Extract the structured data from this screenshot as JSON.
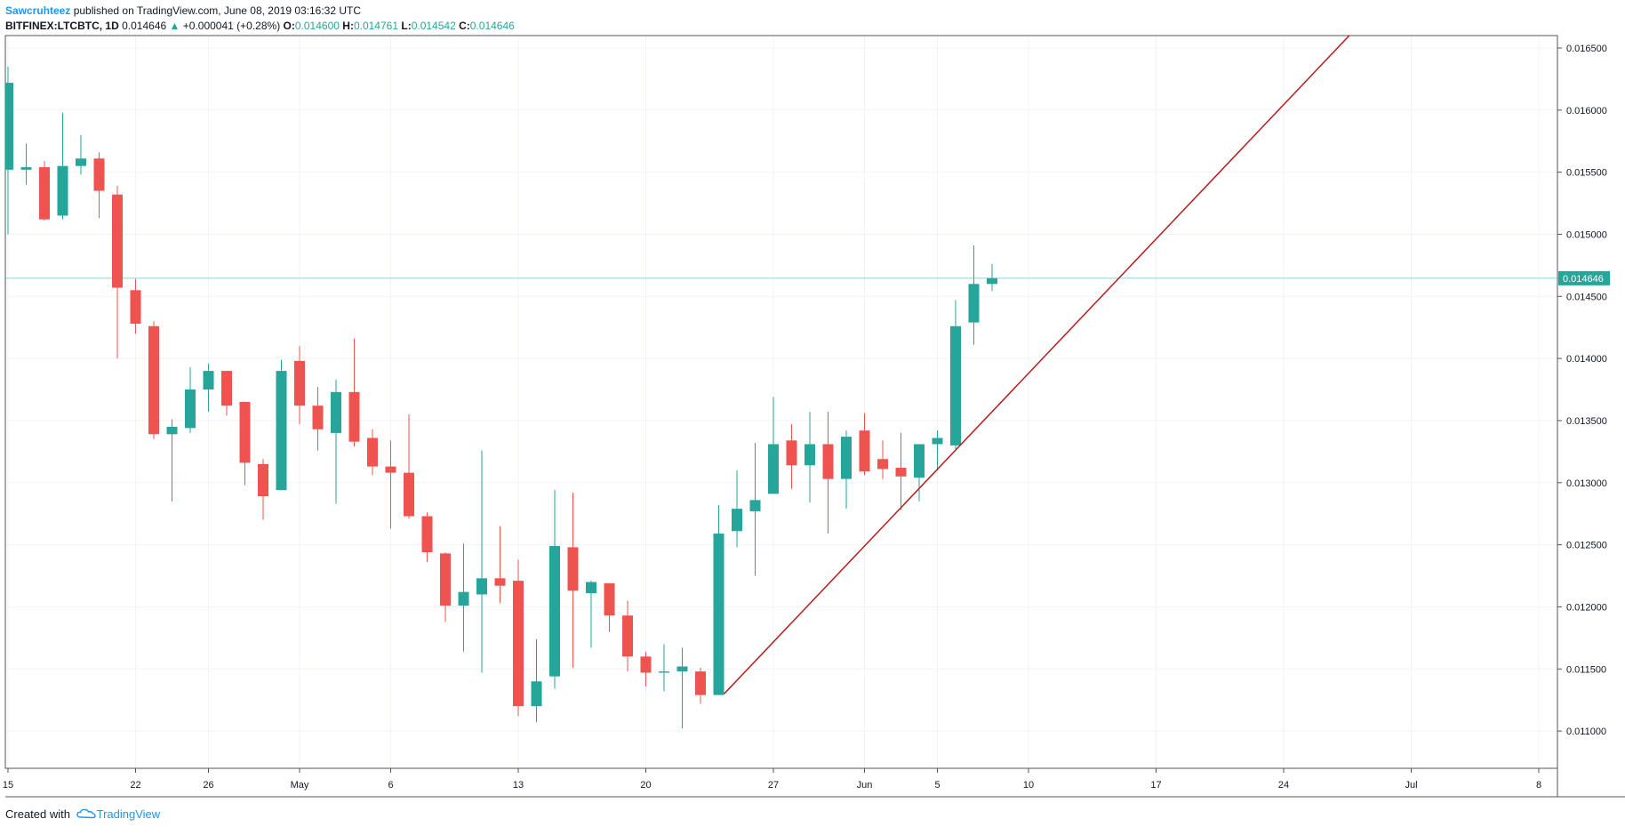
{
  "header": {
    "author": "Sawcruhteez",
    "published": "published on TradingView.com, June 08, 2019 03:16:32 UTC",
    "symbol": "BITFINEX:LTCBTC, 1D",
    "last": "0.014646",
    "change_arrow": "▲",
    "change": "+0.000041 (+0.28%)",
    "o_label": "O:",
    "o": "0.014600",
    "h_label": "H:",
    "h": "0.014761",
    "l_label": "L:",
    "l": "0.014542",
    "c_label": "C:",
    "c": "0.014646"
  },
  "footer": {
    "created_with": "Created with",
    "brand": "TradingView",
    "logo_icon": "tradingview-cloud-icon"
  },
  "colors": {
    "up": "#26a69a",
    "down": "#ef5350",
    "trendline": "#b71c1c",
    "grid": "#f0f3fa",
    "axis": "#555555",
    "price_line": "#26a69a"
  },
  "chart_data": {
    "type": "candlestick",
    "title": "BITFINEX:LTCBTC, 1D",
    "xlabel": "",
    "ylabel": "",
    "ylim": [
      0.0107,
      0.0166
    ],
    "y_ticks": [
      0.011,
      0.0115,
      0.012,
      0.0125,
      0.013,
      0.0135,
      0.014,
      0.0145,
      0.015,
      0.0155,
      0.016,
      0.0165
    ],
    "y_tick_labels": [
      "0.011000",
      "0.011500",
      "0.012000",
      "0.012500",
      "0.013000",
      "0.013500",
      "0.014000",
      "0.014500",
      "0.015000",
      "0.015500",
      "0.016000",
      "0.016500"
    ],
    "x_range_days": [
      0,
      84.5
    ],
    "x_ticks": [
      {
        "day": 0,
        "label": "15"
      },
      {
        "day": 7,
        "label": "22"
      },
      {
        "day": 11,
        "label": "26"
      },
      {
        "day": 16,
        "label": "May"
      },
      {
        "day": 21,
        "label": "6"
      },
      {
        "day": 28,
        "label": "13"
      },
      {
        "day": 35,
        "label": "20"
      },
      {
        "day": 42,
        "label": "27"
      },
      {
        "day": 47,
        "label": "Jun"
      },
      {
        "day": 51,
        "label": "5"
      },
      {
        "day": 56,
        "label": "10"
      },
      {
        "day": 63,
        "label": "17"
      },
      {
        "day": 70,
        "label": "24"
      },
      {
        "day": 77,
        "label": "Jul"
      },
      {
        "day": 84,
        "label": "8"
      }
    ],
    "first_day": "Apr 15, 2019",
    "current_price": 0.014646,
    "current_price_label": "0.014646",
    "candles": [
      {
        "d": 0,
        "o": 0.01552,
        "h": 0.01635,
        "l": 0.015,
        "c": 0.01622
      },
      {
        "d": 1,
        "o": 0.01552,
        "h": 0.01573,
        "l": 0.0154,
        "c": 0.01554
      },
      {
        "d": 2,
        "o": 0.01554,
        "h": 0.01559,
        "l": 0.01511,
        "c": 0.01512
      },
      {
        "d": 3,
        "o": 0.01515,
        "h": 0.01598,
        "l": 0.01512,
        "c": 0.01555
      },
      {
        "d": 4,
        "o": 0.01555,
        "h": 0.0158,
        "l": 0.01548,
        "c": 0.01561
      },
      {
        "d": 5,
        "o": 0.01561,
        "h": 0.01566,
        "l": 0.01513,
        "c": 0.01535
      },
      {
        "d": 6,
        "o": 0.01532,
        "h": 0.01539,
        "l": 0.014,
        "c": 0.01457
      },
      {
        "d": 7,
        "o": 0.01455,
        "h": 0.01464,
        "l": 0.0142,
        "c": 0.01428
      },
      {
        "d": 8,
        "o": 0.01426,
        "h": 0.0143,
        "l": 0.01335,
        "c": 0.01339
      },
      {
        "d": 9,
        "o": 0.01339,
        "h": 0.01351,
        "l": 0.01285,
        "c": 0.01345
      },
      {
        "d": 10,
        "o": 0.01344,
        "h": 0.01393,
        "l": 0.0134,
        "c": 0.01375
      },
      {
        "d": 11,
        "o": 0.01375,
        "h": 0.01396,
        "l": 0.01357,
        "c": 0.0139
      },
      {
        "d": 12,
        "o": 0.0139,
        "h": 0.0139,
        "l": 0.01354,
        "c": 0.01362
      },
      {
        "d": 13,
        "o": 0.01365,
        "h": 0.01365,
        "l": 0.01298,
        "c": 0.01316
      },
      {
        "d": 14,
        "o": 0.01315,
        "h": 0.01319,
        "l": 0.0127,
        "c": 0.01289
      },
      {
        "d": 15,
        "o": 0.01294,
        "h": 0.01399,
        "l": 0.01294,
        "c": 0.0139
      },
      {
        "d": 16,
        "o": 0.01398,
        "h": 0.0141,
        "l": 0.01347,
        "c": 0.01362
      },
      {
        "d": 17,
        "o": 0.01362,
        "h": 0.01377,
        "l": 0.01326,
        "c": 0.01343
      },
      {
        "d": 18,
        "o": 0.0134,
        "h": 0.01383,
        "l": 0.01283,
        "c": 0.01373
      },
      {
        "d": 19,
        "o": 0.01373,
        "h": 0.01416,
        "l": 0.01329,
        "c": 0.01333
      },
      {
        "d": 20,
        "o": 0.01336,
        "h": 0.01343,
        "l": 0.01306,
        "c": 0.01313
      },
      {
        "d": 21,
        "o": 0.01313,
        "h": 0.01334,
        "l": 0.01263,
        "c": 0.01308
      },
      {
        "d": 22,
        "o": 0.01308,
        "h": 0.01355,
        "l": 0.01271,
        "c": 0.01273
      },
      {
        "d": 23,
        "o": 0.01273,
        "h": 0.01276,
        "l": 0.01236,
        "c": 0.01244
      },
      {
        "d": 24,
        "o": 0.01243,
        "h": 0.01244,
        "l": 0.01188,
        "c": 0.01201
      },
      {
        "d": 25,
        "o": 0.01201,
        "h": 0.01251,
        "l": 0.01164,
        "c": 0.01212
      },
      {
        "d": 26,
        "o": 0.0121,
        "h": 0.01326,
        "l": 0.01147,
        "c": 0.01223
      },
      {
        "d": 27,
        "o": 0.01223,
        "h": 0.01265,
        "l": 0.01203,
        "c": 0.01217
      },
      {
        "d": 28,
        "o": 0.01221,
        "h": 0.01238,
        "l": 0.01112,
        "c": 0.0112
      },
      {
        "d": 29,
        "o": 0.0112,
        "h": 0.01174,
        "l": 0.01107,
        "c": 0.0114
      },
      {
        "d": 30,
        "o": 0.01144,
        "h": 0.01294,
        "l": 0.01134,
        "c": 0.01249
      },
      {
        "d": 31,
        "o": 0.01248,
        "h": 0.01292,
        "l": 0.01151,
        "c": 0.01213
      },
      {
        "d": 32,
        "o": 0.01211,
        "h": 0.01221,
        "l": 0.01167,
        "c": 0.0122
      },
      {
        "d": 33,
        "o": 0.01219,
        "h": 0.01219,
        "l": 0.0118,
        "c": 0.01193
      },
      {
        "d": 34,
        "o": 0.01193,
        "h": 0.01205,
        "l": 0.01148,
        "c": 0.0116
      },
      {
        "d": 35,
        "o": 0.0116,
        "h": 0.01164,
        "l": 0.01136,
        "c": 0.01147
      },
      {
        "d": 36,
        "o": 0.01147,
        "h": 0.0117,
        "l": 0.01132,
        "c": 0.01148
      },
      {
        "d": 37,
        "o": 0.01148,
        "h": 0.01167,
        "l": 0.01102,
        "c": 0.01152
      },
      {
        "d": 38,
        "o": 0.01148,
        "h": 0.01151,
        "l": 0.01122,
        "c": 0.01129
      },
      {
        "d": 39,
        "o": 0.01129,
        "h": 0.01282,
        "l": 0.01129,
        "c": 0.01259
      },
      {
        "d": 40,
        "o": 0.01261,
        "h": 0.0131,
        "l": 0.01248,
        "c": 0.01279
      },
      {
        "d": 41,
        "o": 0.01277,
        "h": 0.01332,
        "l": 0.01225,
        "c": 0.01286
      },
      {
        "d": 42,
        "o": 0.01291,
        "h": 0.01369,
        "l": 0.01291,
        "c": 0.01331
      },
      {
        "d": 43,
        "o": 0.01334,
        "h": 0.01347,
        "l": 0.01295,
        "c": 0.01314
      },
      {
        "d": 44,
        "o": 0.01314,
        "h": 0.01357,
        "l": 0.01284,
        "c": 0.01331
      },
      {
        "d": 45,
        "o": 0.01331,
        "h": 0.01357,
        "l": 0.01259,
        "c": 0.01303
      },
      {
        "d": 46,
        "o": 0.01303,
        "h": 0.01342,
        "l": 0.01279,
        "c": 0.01337
      },
      {
        "d": 47,
        "o": 0.01342,
        "h": 0.01356,
        "l": 0.01306,
        "c": 0.01309
      },
      {
        "d": 48,
        "o": 0.01319,
        "h": 0.01334,
        "l": 0.01303,
        "c": 0.01311
      },
      {
        "d": 49,
        "o": 0.01312,
        "h": 0.0134,
        "l": 0.01278,
        "c": 0.01305
      },
      {
        "d": 50,
        "o": 0.01304,
        "h": 0.01331,
        "l": 0.01285,
        "c": 0.01331
      },
      {
        "d": 51,
        "o": 0.01331,
        "h": 0.01342,
        "l": 0.0131,
        "c": 0.01336
      },
      {
        "d": 52,
        "o": 0.0133,
        "h": 0.01447,
        "l": 0.01326,
        "c": 0.01426
      },
      {
        "d": 53,
        "o": 0.01429,
        "h": 0.01491,
        "l": 0.01411,
        "c": 0.0146
      },
      {
        "d": 54,
        "o": 0.0146,
        "h": 0.014761,
        "l": 0.014542,
        "c": 0.014646
      }
    ],
    "trendline": {
      "x1": 39.3,
      "y1": 0.0113,
      "x2": 73.6,
      "y2": 0.0166
    }
  }
}
